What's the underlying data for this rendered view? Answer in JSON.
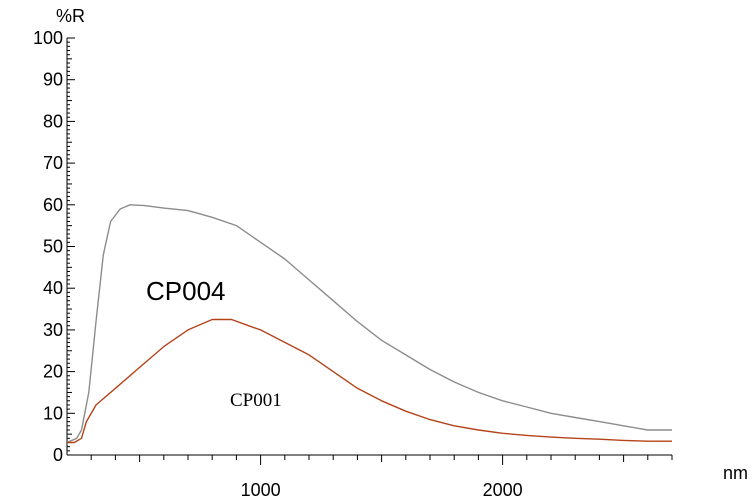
{
  "chart_data": {
    "type": "line",
    "ylabel": "%R",
    "xlabel": "nm",
    "xlim": [
      200,
      2700
    ],
    "ylim": [
      0,
      100
    ],
    "x_ticks": [
      1000,
      2000
    ],
    "y_ticks": [
      0,
      10,
      20,
      30,
      40,
      50,
      60,
      70,
      80,
      90,
      100
    ],
    "grid": false,
    "annotations": [
      {
        "text": "CP004",
        "series": "CP004"
      },
      {
        "text": "CP001",
        "series": "CP001"
      }
    ],
    "series": [
      {
        "name": "CP004",
        "color": "#8c8c8c",
        "points": [
          [
            200,
            3
          ],
          [
            240,
            4
          ],
          [
            260,
            6
          ],
          [
            290,
            15
          ],
          [
            320,
            32
          ],
          [
            350,
            48
          ],
          [
            380,
            56
          ],
          [
            420,
            59
          ],
          [
            460,
            60
          ],
          [
            520,
            59.8
          ],
          [
            600,
            59.2
          ],
          [
            700,
            58.6
          ],
          [
            800,
            57
          ],
          [
            900,
            55
          ],
          [
            1000,
            51
          ],
          [
            1100,
            47
          ],
          [
            1200,
            42
          ],
          [
            1300,
            37
          ],
          [
            1400,
            32
          ],
          [
            1500,
            27.5
          ],
          [
            1600,
            24
          ],
          [
            1700,
            20.5
          ],
          [
            1800,
            17.5
          ],
          [
            1900,
            15
          ],
          [
            2000,
            13
          ],
          [
            2100,
            11.5
          ],
          [
            2200,
            10
          ],
          [
            2300,
            9
          ],
          [
            2400,
            8
          ],
          [
            2500,
            7
          ],
          [
            2600,
            6
          ],
          [
            2700,
            6
          ]
        ]
      },
      {
        "name": "CP001",
        "color": "#b5431a",
        "points": [
          [
            200,
            3
          ],
          [
            230,
            3
          ],
          [
            260,
            4
          ],
          [
            280,
            8
          ],
          [
            320,
            12
          ],
          [
            400,
            16
          ],
          [
            500,
            21
          ],
          [
            600,
            26
          ],
          [
            700,
            30
          ],
          [
            800,
            32.5
          ],
          [
            880,
            32.5
          ],
          [
            950,
            31
          ],
          [
            1000,
            30
          ],
          [
            1100,
            27
          ],
          [
            1200,
            24
          ],
          [
            1300,
            20
          ],
          [
            1400,
            16
          ],
          [
            1500,
            13
          ],
          [
            1600,
            10.5
          ],
          [
            1700,
            8.5
          ],
          [
            1800,
            7
          ],
          [
            1900,
            6
          ],
          [
            2000,
            5.2
          ],
          [
            2100,
            4.7
          ],
          [
            2200,
            4.3
          ],
          [
            2300,
            4
          ],
          [
            2400,
            3.8
          ],
          [
            2500,
            3.5
          ],
          [
            2600,
            3.3
          ],
          [
            2700,
            3.3
          ]
        ]
      }
    ]
  }
}
